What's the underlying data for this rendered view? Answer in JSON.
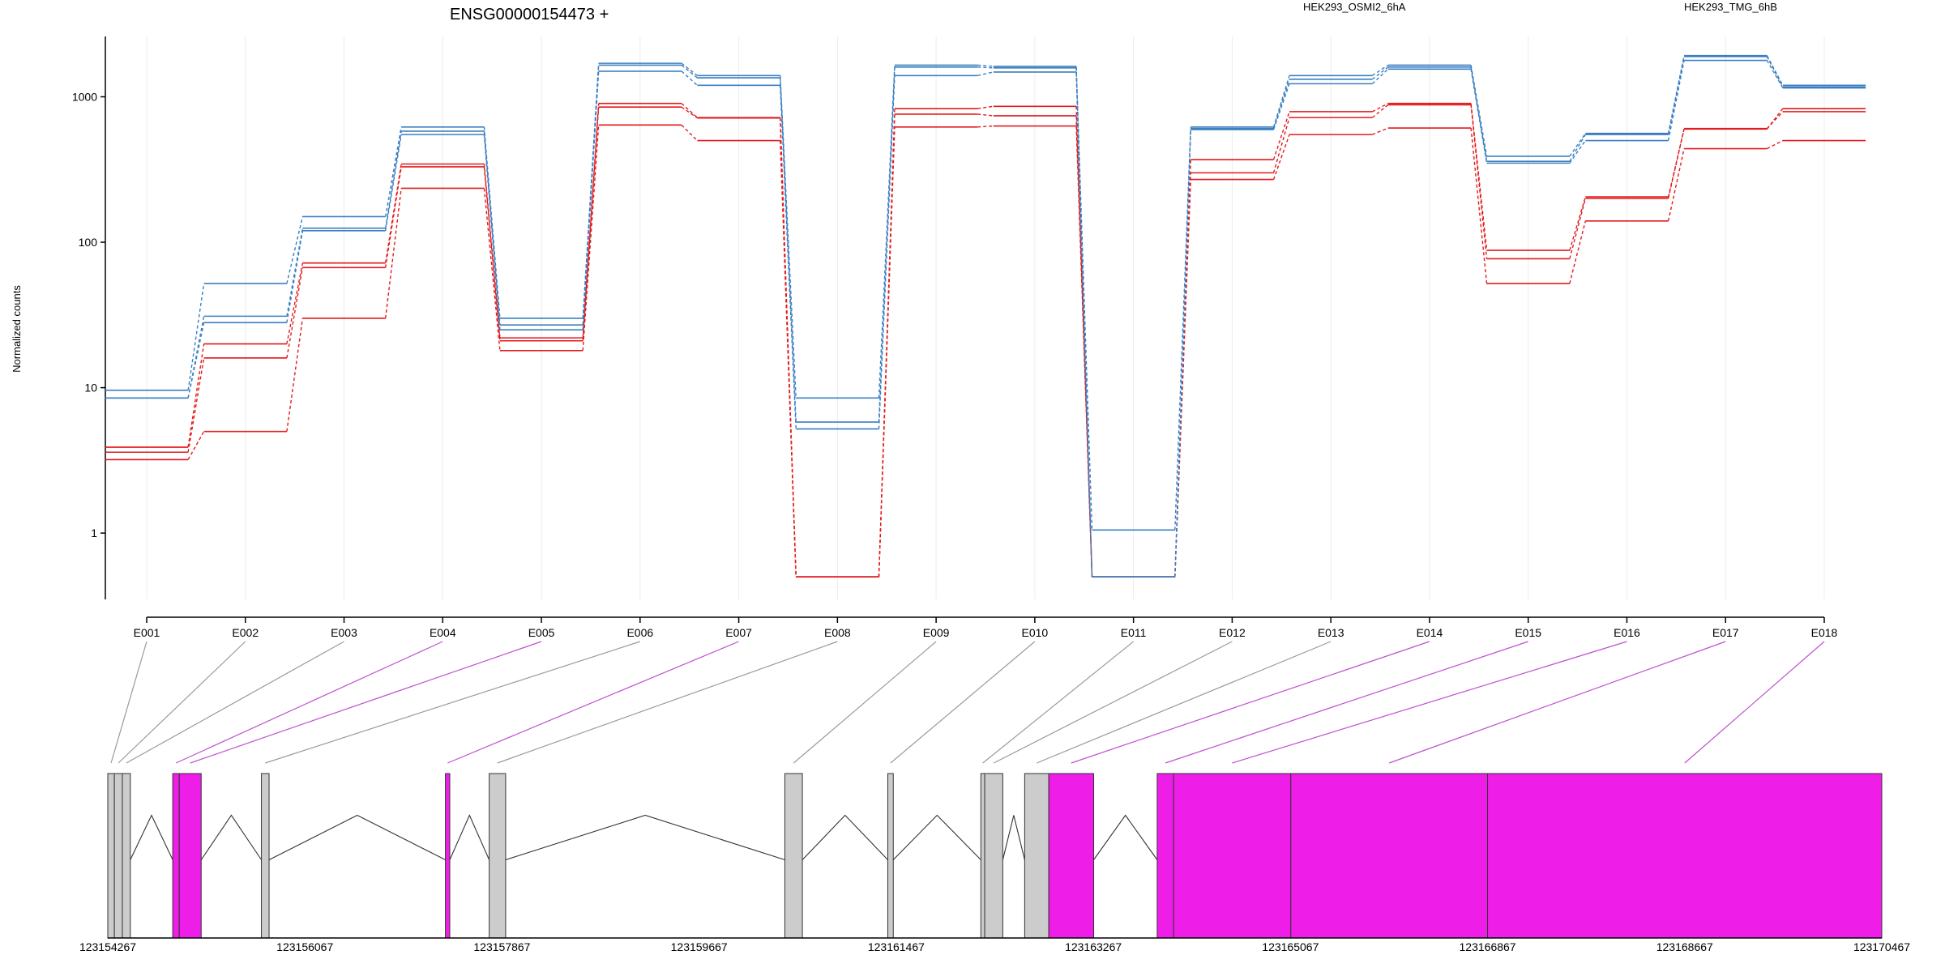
{
  "chart_data": {
    "type": "line",
    "title": "ENSG00000154473 +",
    "ylabel": "Normalized counts",
    "xlabel": "",
    "yscale": "log",
    "ylim": [
      0.35,
      2600
    ],
    "yticks": [
      1,
      10,
      100,
      1000
    ],
    "ytick_labels": [
      "1",
      "10",
      "100",
      "1000"
    ],
    "grid": "vertical lines at exons",
    "legend": [
      "HEK293_OSMI2_6hA",
      "HEK293_TMG_6hB"
    ],
    "colors": {
      "HEK293_OSMI2_6hA": "#e31a1c",
      "HEK293_TMG_6hB": "#3a7fc1",
      "coding_exon": "#ee1ee8",
      "noncoding_exon": "#cccccc"
    },
    "categories": [
      "E001",
      "E002",
      "E003",
      "E004",
      "E005",
      "E006",
      "E007",
      "E008",
      "E009",
      "E010",
      "E011",
      "E012",
      "E013",
      "E014",
      "E015",
      "E016",
      "E017",
      "E018"
    ],
    "series": [
      {
        "name": "HEK293_OSMI2_6hA",
        "values": [
          3.9,
          20,
          72,
          345,
          22,
          900,
          720,
          0.5,
          830,
          860,
          0.5,
          370,
          790,
          900,
          88,
          205,
          600,
          830
        ]
      },
      {
        "name": "HEK293_OSMI2_6hA",
        "values": [
          3.6,
          16,
          67,
          330,
          21,
          850,
          715,
          0.5,
          760,
          740,
          0.5,
          300,
          720,
          880,
          77,
          200,
          605,
          790
        ]
      },
      {
        "name": "HEK293_OSMI2_6hA",
        "values": [
          3.2,
          5,
          30,
          235,
          18,
          640,
          500,
          0.5,
          620,
          630,
          0.5,
          270,
          550,
          610,
          52,
          140,
          440,
          500
        ]
      },
      {
        "name": "HEK293_TMG_6hB",
        "values": [
          9.6,
          52,
          150,
          620,
          30,
          1700,
          1400,
          8.5,
          1650,
          1620,
          1.05,
          620,
          1400,
          1650,
          390,
          560,
          1920,
          1200
        ]
      },
      {
        "name": "HEK293_TMG_6hB",
        "values": [
          8.5,
          31,
          125,
          580,
          27,
          1650,
          1350,
          5.8,
          1600,
          1580,
          0.5,
          605,
          1320,
          1600,
          360,
          550,
          1890,
          1170
        ]
      },
      {
        "name": "HEK293_TMG_6hB",
        "values": [
          8.5,
          28,
          120,
          550,
          25,
          1500,
          1200,
          5.2,
          1400,
          1480,
          0.5,
          595,
          1230,
          1550,
          350,
          500,
          1780,
          1150
        ]
      }
    ],
    "genomic_axis": {
      "tick_labels": [
        "123154267",
        "123156067",
        "123157867",
        "123159667",
        "123161467",
        "123163267",
        "123165067",
        "123166867",
        "123168667",
        "123170467"
      ],
      "tick_values": [
        123154267,
        123156067,
        123157867,
        123159667,
        123161467,
        123163267,
        123165067,
        123166867,
        123168667,
        123170467
      ],
      "range": [
        123154267,
        123170467
      ]
    },
    "exons": [
      {
        "id": "E001",
        "start": 123154267,
        "end": 123154327,
        "coding": false
      },
      {
        "id": "E002",
        "start": 123154327,
        "end": 123154400,
        "coding": false
      },
      {
        "id": "E003",
        "start": 123154400,
        "end": 123154473,
        "coding": false
      },
      {
        "id": "E004",
        "start": 123154860,
        "end": 123154920,
        "coding": true
      },
      {
        "id": "E005",
        "start": 123154920,
        "end": 123155120,
        "coding": true
      },
      {
        "id": "E006",
        "start": 123155670,
        "end": 123155740,
        "coding": false
      },
      {
        "id": "E007",
        "start": 123157350,
        "end": 123157390,
        "coding": true
      },
      {
        "id": "E008",
        "start": 123157750,
        "end": 123157900,
        "coding": false
      },
      {
        "id": "E009",
        "start": 123160450,
        "end": 123160610,
        "coding": false
      },
      {
        "id": "E010",
        "start": 123161390,
        "end": 123161440,
        "coding": false
      },
      {
        "id": "E011",
        "start": 123162240,
        "end": 123162275,
        "coding": false
      },
      {
        "id": "E012",
        "start": 123162275,
        "end": 123162440,
        "coding": false
      },
      {
        "id": "E013",
        "start": 123162640,
        "end": 123162860,
        "coding": false
      },
      {
        "id": "E014",
        "start": 123162860,
        "end": 123163270,
        "coding": true
      },
      {
        "id": "E015",
        "start": 123163850,
        "end": 123164000,
        "coding": true
      },
      {
        "id": "E016",
        "start": 123164000,
        "end": 123165070,
        "coding": true
      },
      {
        "id": "E017",
        "start": 123165070,
        "end": 123166867,
        "coding": true
      },
      {
        "id": "E018",
        "start": 123166867,
        "end": 123170467,
        "coding": true
      }
    ]
  }
}
